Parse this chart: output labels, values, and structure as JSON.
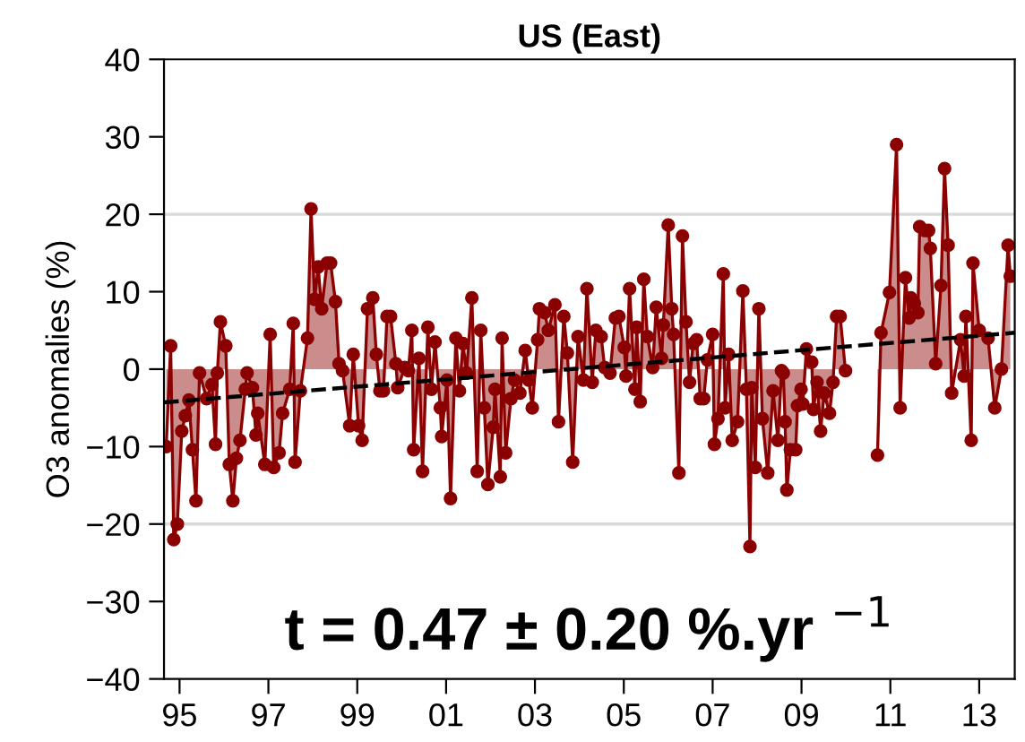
{
  "chart_data": {
    "type": "area",
    "title": "US (East)",
    "ylabel": "O3 anomalies (%)",
    "series": [
      {
        "color": "#8b0000",
        "marker": "circle",
        "x": [
          1994.7,
          1994.8,
          1994.87,
          1994.95,
          1995.05,
          1995.13,
          1995.21,
          1995.29,
          1995.37,
          1995.45,
          1995.61,
          1995.73,
          1995.81,
          1995.85,
          1995.92,
          1996.04,
          1996.12,
          1996.2,
          1996.28,
          1996.36,
          1996.48,
          1996.52,
          1996.64,
          1996.72,
          1996.76,
          1996.92,
          1997.04,
          1997.12,
          1997.24,
          1997.32,
          1997.48,
          1997.56,
          1997.6,
          1997.72,
          1997.88,
          1997.96,
          1998.04,
          1998.12,
          1998.2,
          1998.32,
          1998.4,
          1998.51,
          1998.59,
          1998.67,
          1998.83,
          1998.91,
          1999.03,
          1999.11,
          1999.23,
          1999.35,
          1999.43,
          1999.51,
          1999.59,
          1999.67,
          1999.75,
          1999.87,
          1999.91,
          2000.07,
          2000.15,
          2000.23,
          2000.27,
          2000.39,
          2000.47,
          2000.59,
          2000.67,
          2000.75,
          2000.87,
          2000.9,
          2001.02,
          2001.1,
          2001.22,
          2001.3,
          2001.38,
          2001.46,
          2001.58,
          2001.7,
          2001.78,
          2001.86,
          2001.94,
          2002.06,
          2002.1,
          2002.22,
          2002.26,
          2002.34,
          2002.46,
          2002.54,
          2002.66,
          2002.78,
          2002.86,
          2002.94,
          2003.06,
          2003.1,
          2003.22,
          2003.3,
          2003.45,
          2003.53,
          2003.65,
          2003.73,
          2003.85,
          2003.97,
          2004.09,
          2004.17,
          2004.29,
          2004.37,
          2004.49,
          2004.57,
          2004.69,
          2004.81,
          2004.89,
          2005.01,
          2005.05,
          2005.13,
          2005.25,
          2005.29,
          2005.37,
          2005.45,
          2005.53,
          2005.65,
          2005.73,
          2005.85,
          2005.89,
          2006.0,
          2006.08,
          2006.12,
          2006.24,
          2006.32,
          2006.4,
          2006.48,
          2006.56,
          2006.64,
          2006.72,
          2006.8,
          2006.88,
          2007.0,
          2007.04,
          2007.12,
          2007.24,
          2007.28,
          2007.36,
          2007.44,
          2007.56,
          2007.68,
          2007.76,
          2007.84,
          2007.88,
          2007.96,
          2008.04,
          2008.12,
          2008.24,
          2008.36,
          2008.47,
          2008.55,
          2008.59,
          2008.63,
          2008.67,
          2008.75,
          2008.87,
          2008.91,
          2008.99,
          2009.03,
          2009.11,
          2009.23,
          2009.27,
          2009.35,
          2009.43,
          2009.51,
          2009.63,
          2009.71,
          2009.79,
          2009.87,
          2009.99,
          2010.3,
          2010.71,
          2010.79,
          2010.98,
          2011.14,
          2011.22,
          2011.34,
          2011.42,
          2011.46,
          2011.54,
          2011.62,
          2011.66,
          2011.78,
          2011.86,
          2011.9,
          2012.02,
          2012.14,
          2012.22,
          2012.3,
          2012.38,
          2012.58,
          2012.66,
          2012.7,
          2012.82,
          2012.86,
          2013.0,
          2013.2,
          2013.35,
          2013.5,
          2013.65,
          2013.7
        ],
        "values": [
          -10,
          3,
          -22,
          -20,
          -8,
          -6,
          -4,
          -10.4,
          -17,
          -0.5,
          -3.8,
          -2,
          -9.7,
          -0.5,
          6.1,
          3,
          -12.3,
          -17,
          -11.5,
          -9.2,
          -2.6,
          -0.5,
          -2.4,
          -8.5,
          -5.7,
          -12.3,
          4.5,
          -12.7,
          -10.8,
          -5.7,
          -2.6,
          5.9,
          -12,
          -2.8,
          4,
          20.7,
          9,
          13.2,
          7.8,
          13.7,
          13.7,
          8.7,
          0.7,
          -0.2,
          -7.3,
          1.9,
          -7.3,
          -9.2,
          7.8,
          9.2,
          1.9,
          -2.8,
          -2.8,
          6.8,
          6.8,
          0.7,
          -2.4,
          0.2,
          -0.2,
          5,
          -10.4,
          1.4,
          -13.2,
          5.4,
          -2.6,
          3.5,
          -5,
          -8.7,
          -1.4,
          -16.7,
          4,
          -2.8,
          3.3,
          -0.5,
          9.2,
          -13.2,
          5,
          -5,
          -14.9,
          -7.5,
          -2.6,
          -13.9,
          4,
          -10.8,
          -3.8,
          -1.4,
          -3.1,
          2.4,
          -1.4,
          -5,
          3.8,
          7.8,
          7.3,
          5,
          8.3,
          -6.8,
          6.8,
          2.1,
          -12,
          4.2,
          -1.4,
          10.4,
          -1.7,
          5,
          4.2,
          0.2,
          -0.5,
          6.6,
          6.8,
          2.8,
          -0.9,
          10.4,
          -2.6,
          5.4,
          -4.2,
          11.6,
          4.2,
          0.2,
          8,
          1.4,
          5.7,
          18.6,
          7.8,
          4.5,
          -13.4,
          17.2,
          6.1,
          -1.7,
          3.3,
          3.8,
          -3.8,
          -3.8,
          1.2,
          4.5,
          -9.7,
          -6.4,
          12.3,
          -5,
          1.9,
          -9.2,
          -6.8,
          10.1,
          -2.6,
          -22.9,
          -2.4,
          -12.7,
          7.8,
          -6.4,
          -13.4,
          -2.8,
          -9.2,
          -0.2,
          -0.5,
          -6.8,
          -15.6,
          -10.4,
          -10.4,
          -4.7,
          -2.6,
          -4.5,
          2.6,
          0.9,
          -5.2,
          -1.7,
          -8,
          -3.1,
          -5.7,
          -1.7,
          6.8,
          6.8,
          -0.2,
          null,
          -11.1,
          4.7,
          9.9,
          29,
          -5,
          11.8,
          6.6,
          9.2,
          8.5,
          7.3,
          18.4,
          17.9,
          17.9,
          15.6,
          0.7,
          10.8,
          25.9,
          16,
          -3.1,
          3.8,
          -0.9,
          6.8,
          -9.2,
          13.7,
          5,
          4,
          -5,
          0,
          16,
          12
        ]
      },
      {
        "type": "line",
        "color": "#000000",
        "line_style": "dashed",
        "marker": "none",
        "x": [
          1994.65,
          2013.8
        ],
        "values": [
          -4.3,
          4.7
        ]
      }
    ],
    "xlim": [
      1994.65,
      2013.8
    ],
    "xticks": [
      {
        "value": 1995,
        "label": "95"
      },
      {
        "value": 1997,
        "label": "97"
      },
      {
        "value": 1999,
        "label": "99"
      },
      {
        "value": 2001,
        "label": "01"
      },
      {
        "value": 2003,
        "label": "03"
      },
      {
        "value": 2005,
        "label": "05"
      },
      {
        "value": 2007,
        "label": "07"
      },
      {
        "value": 2009,
        "label": "09"
      },
      {
        "value": 2011,
        "label": "11"
      },
      {
        "value": 2013,
        "label": "13"
      }
    ],
    "ylim": [
      -40,
      40
    ],
    "yticks": [
      {
        "value": -40,
        "label": "−40"
      },
      {
        "value": -30,
        "label": "−30"
      },
      {
        "value": -20,
        "label": "−20"
      },
      {
        "value": -10,
        "label": "−10"
      },
      0,
      10,
      20,
      30,
      40
    ],
    "ref_lines": [
      {
        "axis": "y",
        "value": 20,
        "color": "#d9d9d9"
      },
      {
        "axis": "y",
        "value": -20,
        "color": "#d9d9d9"
      }
    ],
    "grid": false,
    "legend": false,
    "annotations": [
      "t = 0.47 ± 0.20 %.yr $^{−1}$"
    ]
  }
}
